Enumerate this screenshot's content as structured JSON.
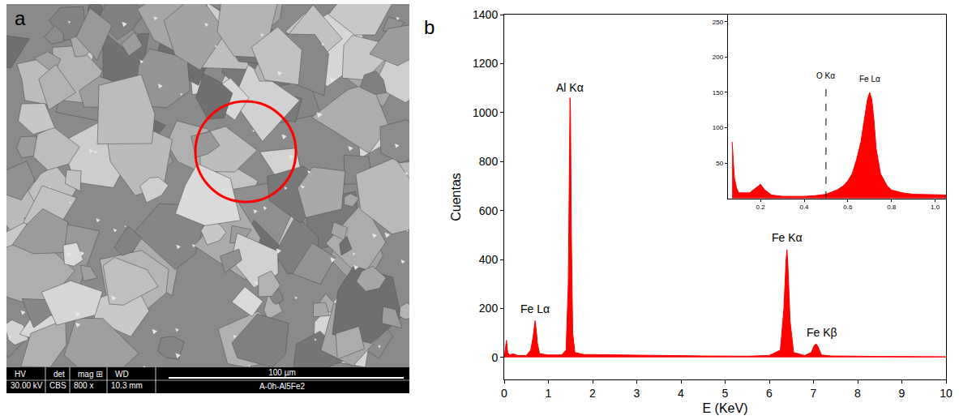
{
  "image_panel": {
    "panel_label": "a",
    "info_bar": {
      "heads": [
        "HV",
        "det",
        "mag ⊞",
        "WD"
      ],
      "values": [
        "30.00 kV",
        "CBS",
        "800 x",
        "10.3 mm"
      ],
      "scale_bar": "100 µm",
      "sample": "A-0h-Al5Fe2"
    },
    "highlight_color": "#ff0000"
  },
  "chart_data": [
    {
      "type": "area",
      "panel_label": "b",
      "x_title": "E (KeV)",
      "y_title": "Cuentas",
      "color": "#ff0000",
      "grid": false,
      "x": [
        0,
        0.05,
        0.08,
        0.12,
        0.2,
        0.3,
        0.5,
        0.6,
        0.65,
        0.68,
        0.7,
        0.72,
        0.75,
        0.8,
        1.0,
        1.3,
        1.4,
        1.45,
        1.48,
        1.49,
        1.5,
        1.52,
        1.55,
        1.6,
        1.8,
        2.5,
        3.5,
        4.5,
        5.5,
        6.0,
        6.25,
        6.33,
        6.38,
        6.4,
        6.42,
        6.47,
        6.55,
        6.8,
        6.95,
        7.02,
        7.06,
        7.1,
        7.18,
        7.4,
        8.5,
        10
      ],
      "values": [
        0,
        70,
        20,
        10,
        15,
        8,
        8,
        30,
        80,
        130,
        150,
        120,
        60,
        15,
        10,
        10,
        30,
        300,
        900,
        1060,
        1000,
        500,
        100,
        20,
        12,
        10,
        8,
        6,
        5,
        8,
        30,
        200,
        400,
        440,
        380,
        150,
        20,
        8,
        20,
        50,
        55,
        45,
        10,
        6,
        4,
        3
      ],
      "xlim": [
        0,
        10
      ],
      "xticks": [
        0,
        1,
        2,
        3,
        4,
        5,
        6,
        7,
        8,
        9,
        10
      ],
      "ylim": [
        -90,
        1400
      ],
      "yticks": [
        0,
        200,
        400,
        600,
        800,
        1000,
        1200,
        1400
      ],
      "annotations": [
        {
          "text": "Fe Lα",
          "x": 0.7,
          "y": 165
        },
        {
          "text": "Al Kα",
          "x": 1.49,
          "y": 1070
        },
        {
          "text": "Fe Kα",
          "x": 6.4,
          "y": 455
        },
        {
          "text": "Fe Kβ",
          "x": 7.2,
          "y": 70
        }
      ]
    },
    {
      "type": "area",
      "color": "#ff0000",
      "grid": false,
      "x": [
        0.07,
        0.075,
        0.08,
        0.09,
        0.1,
        0.15,
        0.18,
        0.2,
        0.22,
        0.25,
        0.3,
        0.4,
        0.45,
        0.5,
        0.55,
        0.58,
        0.6,
        0.62,
        0.64,
        0.66,
        0.68,
        0.69,
        0.7,
        0.71,
        0.72,
        0.73,
        0.75,
        0.78,
        0.8,
        0.85,
        0.9,
        1.0,
        1.05
      ],
      "values": [
        80,
        50,
        30,
        15,
        8,
        8,
        15,
        20,
        12,
        5,
        3,
        3,
        4,
        6,
        12,
        18,
        25,
        35,
        55,
        80,
        120,
        140,
        150,
        140,
        110,
        70,
        35,
        18,
        12,
        8,
        6,
        5,
        5
      ],
      "xlim": [
        0.05,
        1.05
      ],
      "xticks": [
        0.2,
        0.4,
        0.6,
        0.8,
        {
          "value": 1,
          "label": "1.0"
        }
      ],
      "ylim": [
        0,
        260
      ],
      "yticks": [
        50,
        100,
        150,
        200,
        250
      ],
      "annotations": [
        {
          "text": "O Kα",
          "x": 0.5,
          "y": 165,
          "line_style": "dashed"
        },
        {
          "text": "Fe Lα",
          "x": 0.7,
          "y": 160
        }
      ]
    }
  ]
}
